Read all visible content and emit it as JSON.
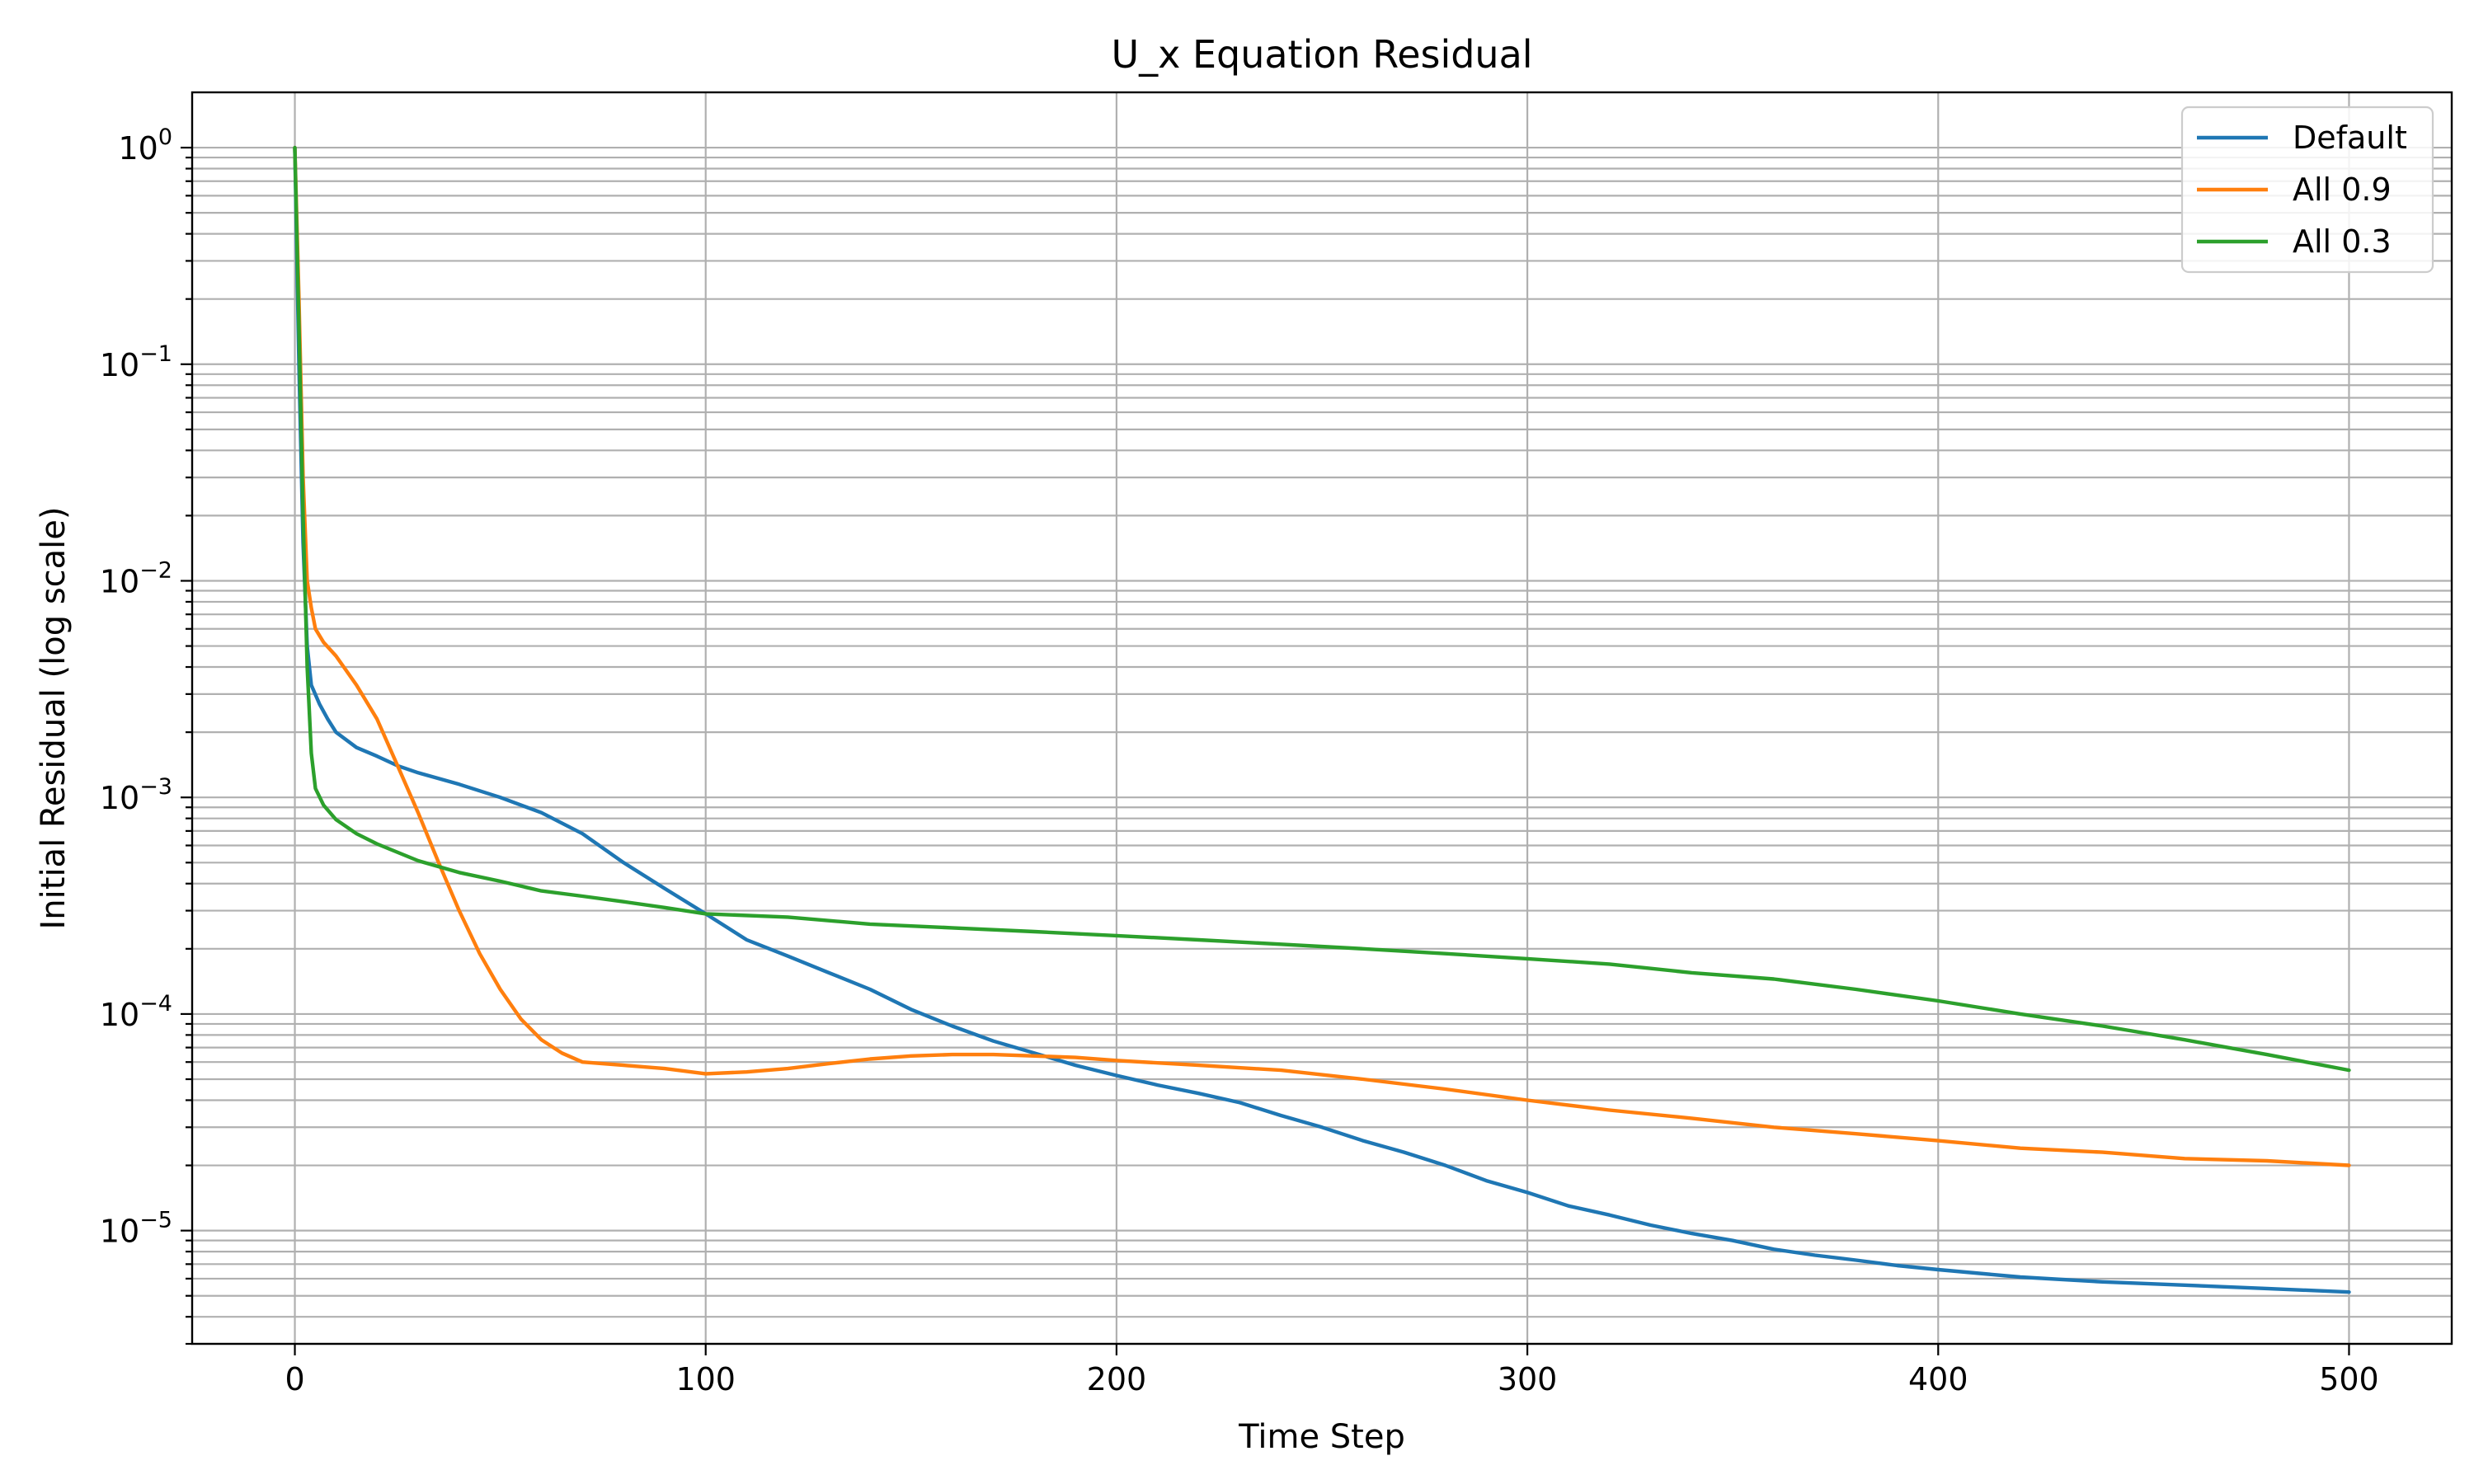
{
  "chart_data": {
    "type": "line",
    "title": "U_x Equation Residual",
    "xlabel": "Time Step",
    "ylabel": "Initial Residual (log scale)",
    "xlim": [
      -25,
      525
    ],
    "ylim": [
      3e-06,
      1.8
    ],
    "yscale": "log",
    "grid": "both",
    "legend_position": "top-right",
    "x_ticks": [
      0,
      100,
      200,
      300,
      400,
      500
    ],
    "x_tick_labels": [
      "0",
      "100",
      "200",
      "300",
      "400",
      "500"
    ],
    "y_ticks": [
      1e-05,
      0.0001,
      0.001,
      0.01,
      0.1,
      1
    ],
    "y_tick_labels": [
      {
        "base": "10",
        "exp": "−5"
      },
      {
        "base": "10",
        "exp": "−4"
      },
      {
        "base": "10",
        "exp": "−3"
      },
      {
        "base": "10",
        "exp": "−2"
      },
      {
        "base": "10",
        "exp": "−1"
      },
      {
        "base": "10",
        "exp": "0"
      }
    ],
    "series": [
      {
        "name": "Default",
        "color": "#1f77b4",
        "points": [
          [
            0,
            1.0
          ],
          [
            1,
            0.1
          ],
          [
            2,
            0.015
          ],
          [
            3,
            0.005
          ],
          [
            4,
            0.0033
          ],
          [
            6,
            0.0027
          ],
          [
            8,
            0.0023
          ],
          [
            10,
            0.002
          ],
          [
            15,
            0.0017
          ],
          [
            20,
            0.00155
          ],
          [
            25,
            0.0014
          ],
          [
            30,
            0.0013
          ],
          [
            40,
            0.00115
          ],
          [
            50,
            0.001
          ],
          [
            60,
            0.00085
          ],
          [
            70,
            0.00068
          ],
          [
            80,
            0.0005
          ],
          [
            90,
            0.00038
          ],
          [
            100,
            0.00029
          ],
          [
            110,
            0.00022
          ],
          [
            120,
            0.000185
          ],
          [
            130,
            0.000155
          ],
          [
            140,
            0.00013
          ],
          [
            150,
            0.000105
          ],
          [
            160,
            8.8e-05
          ],
          [
            170,
            7.5e-05
          ],
          [
            180,
            6.6e-05
          ],
          [
            190,
            5.8e-05
          ],
          [
            200,
            5.2e-05
          ],
          [
            210,
            4.7e-05
          ],
          [
            220,
            4.3e-05
          ],
          [
            230,
            3.9e-05
          ],
          [
            240,
            3.4e-05
          ],
          [
            250,
            3e-05
          ],
          [
            260,
            2.6e-05
          ],
          [
            270,
            2.3e-05
          ],
          [
            280,
            2e-05
          ],
          [
            290,
            1.7e-05
          ],
          [
            300,
            1.5e-05
          ],
          [
            310,
            1.3e-05
          ],
          [
            320,
            1.18e-05
          ],
          [
            330,
            1.06e-05
          ],
          [
            340,
            9.7e-06
          ],
          [
            350,
            9e-06
          ],
          [
            360,
            8.2e-06
          ],
          [
            370,
            7.7e-06
          ],
          [
            380,
            7.3e-06
          ],
          [
            390,
            6.9e-06
          ],
          [
            400,
            6.6e-06
          ],
          [
            420,
            6.1e-06
          ],
          [
            440,
            5.8e-06
          ],
          [
            460,
            5.6e-06
          ],
          [
            480,
            5.4e-06
          ],
          [
            500,
            5.2e-06
          ]
        ]
      },
      {
        "name": "All 0.9",
        "color": "#ff7f0e",
        "points": [
          [
            0,
            1.0
          ],
          [
            1,
            0.2
          ],
          [
            2,
            0.03
          ],
          [
            3,
            0.01
          ],
          [
            4,
            0.0075
          ],
          [
            5,
            0.006
          ],
          [
            7,
            0.0052
          ],
          [
            10,
            0.0045
          ],
          [
            15,
            0.0033
          ],
          [
            20,
            0.0023
          ],
          [
            25,
            0.0014
          ],
          [
            30,
            0.00085
          ],
          [
            35,
            0.0005
          ],
          [
            40,
            0.0003
          ],
          [
            45,
            0.00019
          ],
          [
            50,
            0.00013
          ],
          [
            55,
            9.5e-05
          ],
          [
            60,
            7.6e-05
          ],
          [
            65,
            6.6e-05
          ],
          [
            70,
            6e-05
          ],
          [
            80,
            5.8e-05
          ],
          [
            90,
            5.6e-05
          ],
          [
            100,
            5.3e-05
          ],
          [
            110,
            5.4e-05
          ],
          [
            120,
            5.6e-05
          ],
          [
            130,
            5.9e-05
          ],
          [
            140,
            6.2e-05
          ],
          [
            150,
            6.4e-05
          ],
          [
            160,
            6.5e-05
          ],
          [
            170,
            6.5e-05
          ],
          [
            180,
            6.4e-05
          ],
          [
            190,
            6.3e-05
          ],
          [
            200,
            6.1e-05
          ],
          [
            220,
            5.8e-05
          ],
          [
            240,
            5.5e-05
          ],
          [
            260,
            5e-05
          ],
          [
            280,
            4.5e-05
          ],
          [
            300,
            4e-05
          ],
          [
            320,
            3.6e-05
          ],
          [
            340,
            3.3e-05
          ],
          [
            360,
            3e-05
          ],
          [
            380,
            2.8e-05
          ],
          [
            400,
            2.6e-05
          ],
          [
            420,
            2.4e-05
          ],
          [
            440,
            2.3e-05
          ],
          [
            460,
            2.15e-05
          ],
          [
            480,
            2.1e-05
          ],
          [
            500,
            2e-05
          ]
        ]
      },
      {
        "name": "All 0.3",
        "color": "#2ca02c",
        "points": [
          [
            0,
            1.0
          ],
          [
            1,
            0.15
          ],
          [
            2,
            0.02
          ],
          [
            3,
            0.004
          ],
          [
            4,
            0.0016
          ],
          [
            5,
            0.0011
          ],
          [
            7,
            0.00092
          ],
          [
            10,
            0.00079
          ],
          [
            15,
            0.00068
          ],
          [
            20,
            0.00061
          ],
          [
            30,
            0.00051
          ],
          [
            40,
            0.00045
          ],
          [
            50,
            0.00041
          ],
          [
            60,
            0.00037
          ],
          [
            70,
            0.00035
          ],
          [
            80,
            0.00033
          ],
          [
            90,
            0.00031
          ],
          [
            100,
            0.00029
          ],
          [
            120,
            0.00028
          ],
          [
            140,
            0.00026
          ],
          [
            160,
            0.00025
          ],
          [
            180,
            0.00024
          ],
          [
            200,
            0.00023
          ],
          [
            220,
            0.00022
          ],
          [
            240,
            0.00021
          ],
          [
            260,
            0.0002
          ],
          [
            280,
            0.00019
          ],
          [
            300,
            0.00018
          ],
          [
            320,
            0.00017
          ],
          [
            340,
            0.000155
          ],
          [
            360,
            0.000145
          ],
          [
            380,
            0.00013
          ],
          [
            400,
            0.000115
          ],
          [
            420,
            0.0001
          ],
          [
            440,
            8.8e-05
          ],
          [
            460,
            7.6e-05
          ],
          [
            480,
            6.5e-05
          ],
          [
            500,
            5.5e-05
          ]
        ]
      }
    ]
  }
}
